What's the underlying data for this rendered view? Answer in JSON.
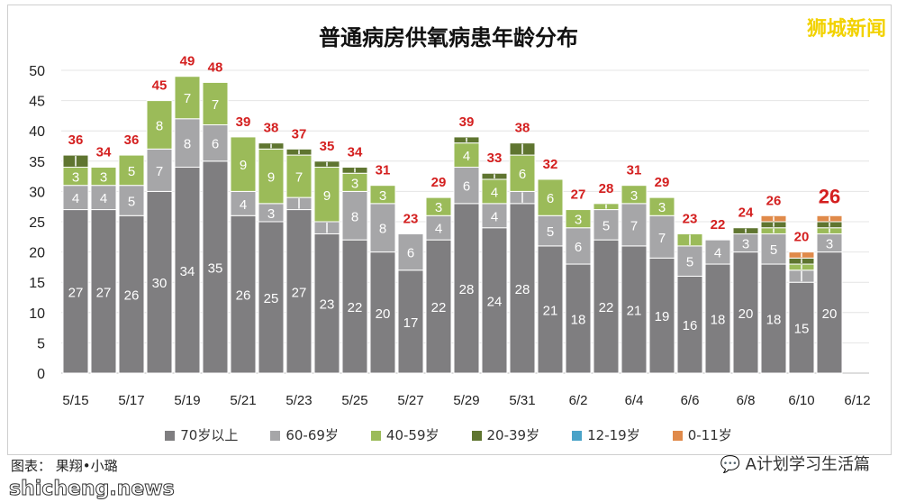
{
  "chart_data": {
    "type": "bar",
    "stacked": true,
    "title": "普通病房供氧病患年龄分布",
    "ylim": [
      0,
      50
    ],
    "yticks": [
      0,
      5,
      10,
      15,
      20,
      25,
      30,
      35,
      40,
      45,
      50
    ],
    "grid": true,
    "legend_position": "bottom",
    "categories": [
      "5/15",
      "5/16",
      "5/17",
      "5/18",
      "5/19",
      "5/20",
      "5/21",
      "5/22",
      "5/23",
      "5/24",
      "5/25",
      "5/26",
      "5/27",
      "5/28",
      "5/29",
      "5/30",
      "5/31",
      "6/1",
      "6/2",
      "6/3",
      "6/4",
      "6/5",
      "6/6",
      "6/7",
      "6/8",
      "6/9",
      "6/10",
      "6/11"
    ],
    "xtick_labels": [
      "5/15",
      "5/17",
      "5/19",
      "5/21",
      "5/23",
      "5/25",
      "5/27",
      "5/29",
      "5/31",
      "6/2",
      "6/4",
      "6/6",
      "6/8",
      "6/10",
      "6/12"
    ],
    "series": [
      {
        "name": "70岁以上",
        "color": "#7f7e80",
        "values": [
          27,
          27,
          26,
          30,
          34,
          35,
          26,
          25,
          27,
          23,
          22,
          20,
          17,
          22,
          28,
          24,
          28,
          21,
          18,
          22,
          21,
          19,
          16,
          18,
          20,
          18,
          15,
          20
        ]
      },
      {
        "name": "60-69岁",
        "color": "#a6a6a8",
        "values": [
          4,
          4,
          5,
          7,
          8,
          6,
          4,
          3,
          2,
          2,
          8,
          8,
          6,
          4,
          6,
          4,
          2,
          5,
          6,
          5,
          7,
          7,
          5,
          4,
          3,
          5,
          2,
          3
        ]
      },
      {
        "name": "40-59岁",
        "color": "#9bbb59",
        "values": [
          3,
          3,
          5,
          8,
          7,
          7,
          9,
          9,
          7,
          9,
          3,
          3,
          0,
          3,
          4,
          4,
          6,
          6,
          3,
          1,
          3,
          3,
          2,
          0,
          0,
          1,
          1,
          1
        ]
      },
      {
        "name": "20-39岁",
        "color": "#5f7530",
        "values": [
          2,
          0,
          0,
          0,
          0,
          0,
          0,
          1,
          1,
          1,
          1,
          0,
          0,
          0,
          1,
          1,
          2,
          0,
          0,
          0,
          0,
          0,
          0,
          0,
          1,
          1,
          1,
          1
        ]
      },
      {
        "name": "12-19岁",
        "color": "#4aa3c8",
        "values": [
          0,
          0,
          0,
          0,
          0,
          0,
          0,
          0,
          0,
          0,
          0,
          0,
          0,
          0,
          0,
          0,
          0,
          0,
          0,
          0,
          0,
          0,
          0,
          0,
          0,
          0,
          0,
          0
        ]
      },
      {
        "name": "0-11岁",
        "color": "#e08a4a",
        "values": [
          0,
          0,
          0,
          0,
          0,
          0,
          0,
          0,
          0,
          0,
          0,
          0,
          0,
          0,
          0,
          0,
          0,
          0,
          0,
          0,
          0,
          0,
          0,
          0,
          0,
          1,
          1,
          1
        ]
      }
    ],
    "totals": [
      36,
      34,
      36,
      45,
      49,
      48,
      39,
      38,
      37,
      35,
      34,
      31,
      23,
      29,
      39,
      33,
      38,
      32,
      27,
      28,
      31,
      29,
      23,
      22,
      24,
      26,
      20,
      26
    ],
    "total_label_color": "#d42020"
  },
  "watermark": "狮城新闻",
  "credit": "图表：  果翔•小璐",
  "site": "shicheng.news",
  "wechat": "A计划学习生活篇"
}
